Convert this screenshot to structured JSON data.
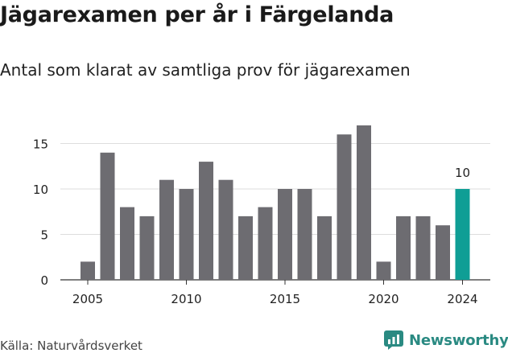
{
  "header": {
    "title": "Jägarexamen per år i Färgelanda",
    "subtitle": "Antal som klarat av samtliga prov för jägarexamen"
  },
  "footer": {
    "source": "Källa: Naturvårdsverket",
    "brand": "Newsworthy"
  },
  "colors": {
    "bar": "#6d6c71",
    "highlight": "#0f9e95",
    "grid": "#dddddd",
    "brand": "#2a8a82"
  },
  "chart_data": {
    "type": "bar",
    "categories": [
      2005,
      2006,
      2007,
      2008,
      2009,
      2010,
      2011,
      2012,
      2013,
      2014,
      2015,
      2016,
      2017,
      2018,
      2019,
      2020,
      2021,
      2022,
      2023,
      2024
    ],
    "values": [
      2,
      14,
      8,
      7,
      11,
      10,
      13,
      11,
      7,
      8,
      10,
      10,
      7,
      16,
      17,
      2,
      7,
      7,
      6,
      10
    ],
    "ylim": [
      0,
      17
    ],
    "yticks": [
      0,
      5,
      10,
      15
    ],
    "xticks": [
      2005,
      2010,
      2015,
      2020,
      2024
    ],
    "highlight_category": 2024,
    "data_labels": [
      {
        "category": 2024,
        "text": "10"
      }
    ],
    "grid": true
  }
}
